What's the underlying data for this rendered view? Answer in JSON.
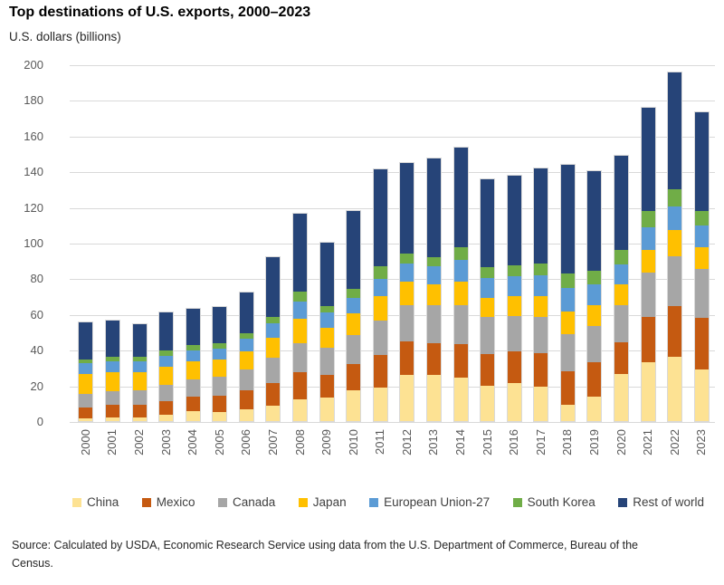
{
  "header": {
    "title": "Top destinations of U.S. exports, 2000–2023",
    "subtitle": "U.S. dollars (billions)"
  },
  "source": {
    "text": "Source: Calculated by USDA, Economic Research Service using data from the U.S. Department of Commerce, Bureau of the Census."
  },
  "chart_data": {
    "type": "bar",
    "stacked": true,
    "title": "Top destinations of U.S. exports, 2000–2023",
    "xlabel": "",
    "ylabel": "U.S. dollars (billions)",
    "ylim": [
      0,
      200
    ],
    "ytick_step": 20,
    "grid": true,
    "legend_position": "bottom",
    "categories": [
      "2000",
      "2001",
      "2002",
      "2003",
      "2004",
      "2005",
      "2006",
      "2007",
      "2008",
      "2009",
      "2010",
      "2011",
      "2012",
      "2013",
      "2014",
      "2015",
      "2016",
      "2017",
      "2018",
      "2019",
      "2020",
      "2021",
      "2022",
      "2023"
    ],
    "series": [
      {
        "name": "China",
        "color": "#FDE293",
        "values": [
          1.7,
          1.9,
          2.1,
          3.5,
          5.5,
          5.2,
          6.7,
          8.9,
          12.1,
          13.1,
          17.5,
          18.9,
          25.9,
          25.9,
          24.3,
          20.2,
          21.4,
          19.6,
          9.3,
          13.9,
          26.4,
          33.0,
          36.4,
          29.1
        ]
      },
      {
        "name": "Mexico",
        "color": "#C55A11",
        "values": [
          6.3,
          7.3,
          7.1,
          7.9,
          8.5,
          9.4,
          10.9,
          12.7,
          15.5,
          12.9,
          14.6,
          18.5,
          18.9,
          18.1,
          19.3,
          17.7,
          17.8,
          18.6,
          19.0,
          19.2,
          18.3,
          25.5,
          28.3,
          28.9
        ]
      },
      {
        "name": "Canada",
        "color": "#A6A6A6",
        "values": [
          7.6,
          7.9,
          8.6,
          9.3,
          9.8,
          10.5,
          11.9,
          14.1,
          16.3,
          15.6,
          16.8,
          19.2,
          20.6,
          21.3,
          21.9,
          20.8,
          20.2,
          20.4,
          20.7,
          20.8,
          20.9,
          25.0,
          28.4,
          27.9
        ]
      },
      {
        "name": "Japan",
        "color": "#FFC000",
        "values": [
          11.1,
          10.9,
          10.4,
          10.5,
          10.4,
          10.1,
          10.4,
          11.7,
          13.8,
          11.2,
          11.8,
          14.0,
          13.5,
          12.1,
          13.4,
          11.1,
          11.1,
          11.9,
          12.9,
          11.8,
          11.8,
          12.8,
          14.6,
          11.9
        ]
      },
      {
        "name": "European Union-27",
        "color": "#5B9BD5",
        "values": [
          6.2,
          6.0,
          5.8,
          6.0,
          6.1,
          6.3,
          6.9,
          8.3,
          10.1,
          8.6,
          9.0,
          9.9,
          9.9,
          10.1,
          12.1,
          11.2,
          11.3,
          11.6,
          13.5,
          11.6,
          11.2,
          12.9,
          13.0,
          12.7
        ]
      },
      {
        "name": "South Korea",
        "color": "#70AD47",
        "values": [
          2.5,
          2.9,
          2.8,
          2.9,
          3.0,
          2.9,
          3.2,
          3.6,
          5.6,
          3.9,
          5.3,
          7.0,
          6.0,
          5.2,
          6.9,
          6.0,
          6.0,
          6.9,
          8.0,
          7.7,
          7.9,
          9.4,
          9.8,
          8.0
        ]
      },
      {
        "name": "Rest of world",
        "color": "#264478",
        "values": [
          20.8,
          20.5,
          18.8,
          21.8,
          20.6,
          20.7,
          23.1,
          33.7,
          44.1,
          35.6,
          43.7,
          54.6,
          51.1,
          55.6,
          56.6,
          49.7,
          50.7,
          53.6,
          61.1,
          56.3,
          53.2,
          58.0,
          65.9,
          55.7
        ]
      }
    ]
  }
}
